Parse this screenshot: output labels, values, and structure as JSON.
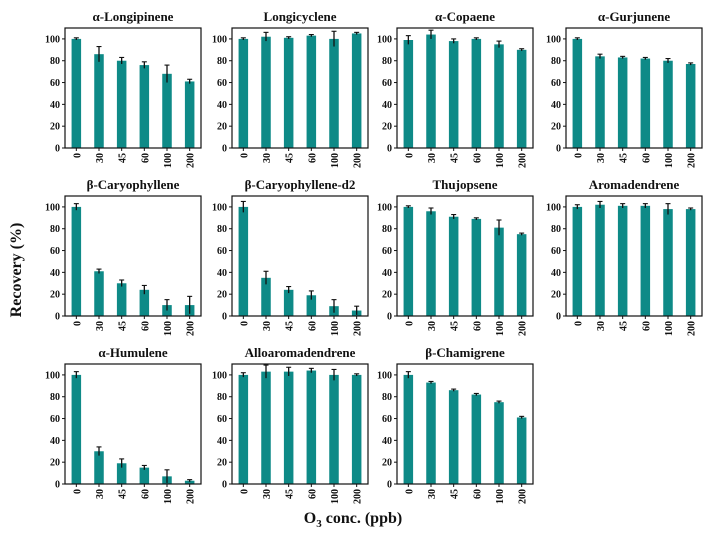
{
  "figure": {
    "ylabel": "Recovery (%)",
    "xlabel_main": "O",
    "xlabel_sub": "3",
    "xlabel_rest": " conc. (ppb)",
    "bar_color": "#0e8a87",
    "error_color": "#111111"
  },
  "chart_data": [
    {
      "type": "bar",
      "title": "α-Longipinene",
      "categories": [
        "0",
        "30",
        "45",
        "60",
        "100",
        "200"
      ],
      "values": [
        100,
        86,
        80,
        76,
        68,
        61
      ],
      "errors": [
        1,
        7,
        3,
        3,
        8,
        2
      ],
      "ylim": [
        0,
        110
      ],
      "yticks": [
        0,
        20,
        40,
        60,
        80,
        100
      ]
    },
    {
      "type": "bar",
      "title": "Longicyclene",
      "categories": [
        "0",
        "30",
        "45",
        "60",
        "100",
        "200"
      ],
      "values": [
        100,
        102,
        101,
        103,
        100,
        105
      ],
      "errors": [
        1,
        4,
        1,
        1,
        7,
        1
      ],
      "ylim": [
        0,
        110
      ],
      "yticks": [
        0,
        20,
        40,
        60,
        80,
        100
      ]
    },
    {
      "type": "bar",
      "title": "α-Copaene",
      "categories": [
        "0",
        "30",
        "45",
        "60",
        "100",
        "200"
      ],
      "values": [
        99,
        104,
        98,
        100,
        95,
        90
      ],
      "errors": [
        4,
        4,
        2,
        1,
        3,
        1
      ],
      "ylim": [
        0,
        110
      ],
      "yticks": [
        0,
        20,
        40,
        60,
        80,
        100
      ]
    },
    {
      "type": "bar",
      "title": "α-Gurjunene",
      "categories": [
        "0",
        "30",
        "45",
        "60",
        "100",
        "200"
      ],
      "values": [
        100,
        84,
        83,
        82,
        80,
        77
      ],
      "errors": [
        1,
        2,
        1,
        1,
        2,
        1
      ],
      "ylim": [
        0,
        110
      ],
      "yticks": [
        0,
        20,
        40,
        60,
        80,
        100
      ]
    },
    {
      "type": "bar",
      "title": "β-Caryophyllene",
      "categories": [
        "0",
        "30",
        "45",
        "60",
        "100",
        "200"
      ],
      "values": [
        100,
        41,
        30,
        24,
        10,
        10
      ],
      "errors": [
        3,
        2,
        3,
        4,
        5,
        8
      ],
      "ylim": [
        0,
        110
      ],
      "yticks": [
        0,
        20,
        40,
        60,
        80,
        100
      ]
    },
    {
      "type": "bar",
      "title": "β-Caryophyllene-d2",
      "categories": [
        "0",
        "30",
        "45",
        "60",
        "100",
        "200"
      ],
      "values": [
        100,
        35,
        24,
        19,
        9,
        5
      ],
      "errors": [
        5,
        6,
        3,
        4,
        6,
        4
      ],
      "ylim": [
        0,
        110
      ],
      "yticks": [
        0,
        20,
        40,
        60,
        80,
        100
      ]
    },
    {
      "type": "bar",
      "title": "Thujopsene",
      "categories": [
        "0",
        "30",
        "45",
        "60",
        "100",
        "200"
      ],
      "values": [
        100,
        96,
        91,
        89,
        81,
        75
      ],
      "errors": [
        1,
        3,
        2,
        1,
        7,
        1
      ],
      "ylim": [
        0,
        110
      ],
      "yticks": [
        0,
        20,
        40,
        60,
        80,
        100
      ]
    },
    {
      "type": "bar",
      "title": "Aromadendrene",
      "categories": [
        "0",
        "30",
        "45",
        "60",
        "100",
        "200"
      ],
      "values": [
        100,
        102,
        101,
        101,
        98,
        98
      ],
      "errors": [
        2,
        3,
        2,
        2,
        5,
        1
      ],
      "ylim": [
        0,
        110
      ],
      "yticks": [
        0,
        20,
        40,
        60,
        80,
        100
      ]
    },
    {
      "type": "bar",
      "title": "α-Humulene",
      "categories": [
        "0",
        "30",
        "45",
        "60",
        "100",
        "200"
      ],
      "values": [
        100,
        30,
        19,
        15,
        7,
        3
      ],
      "errors": [
        3,
        4,
        4,
        2,
        6,
        1
      ],
      "ylim": [
        0,
        110
      ],
      "yticks": [
        0,
        20,
        40,
        60,
        80,
        100
      ]
    },
    {
      "type": "bar",
      "title": "Alloaromadendrene",
      "categories": [
        "0",
        "30",
        "45",
        "60",
        "100",
        "200"
      ],
      "values": [
        100,
        103,
        103,
        104,
        100,
        100
      ],
      "errors": [
        2,
        6,
        4,
        2,
        5,
        1
      ],
      "ylim": [
        0,
        110
      ],
      "yticks": [
        0,
        20,
        40,
        60,
        80,
        100
      ]
    },
    {
      "type": "bar",
      "title": "β-Chamigrene",
      "categories": [
        "0",
        "30",
        "45",
        "60",
        "100",
        "200"
      ],
      "values": [
        100,
        93,
        86,
        82,
        75,
        61
      ],
      "errors": [
        3,
        1,
        1,
        1,
        1,
        1
      ],
      "ylim": [
        0,
        110
      ],
      "yticks": [
        0,
        20,
        40,
        60,
        80,
        100
      ]
    }
  ]
}
